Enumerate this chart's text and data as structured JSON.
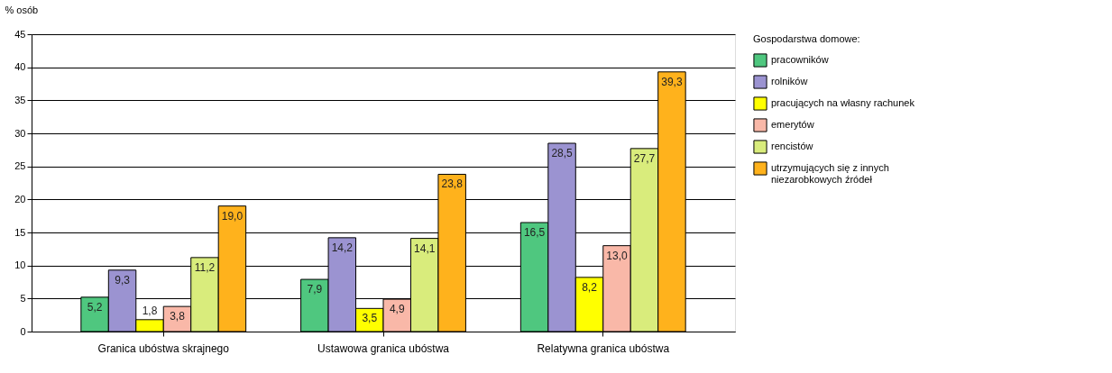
{
  "chart_data": {
    "type": "bar",
    "ylabel": "% osób",
    "legend_title": "Gospodarstwa domowe:",
    "categories": [
      "Granica ubóstwa skrajnego",
      "Ustawowa granica ubóstwa",
      "Relatywna granica ubóstwa"
    ],
    "series": [
      {
        "name": "pracowników",
        "color": "#4fc77f",
        "values": [
          5.2,
          7.9,
          16.5
        ],
        "value_labels": [
          "5,2",
          "7,9",
          "16,5"
        ]
      },
      {
        "name": "rolników",
        "color": "#9b93d1",
        "values": [
          9.3,
          14.2,
          28.5
        ],
        "value_labels": [
          "9,3",
          "14,2",
          "28,5"
        ]
      },
      {
        "name": "pracujących na własny rachunek",
        "color": "#ffff00",
        "values": [
          1.8,
          3.5,
          8.2
        ],
        "value_labels": [
          "1,8",
          "3,5",
          "8,2"
        ]
      },
      {
        "name": "emerytów",
        "color": "#f9b8a8",
        "values": [
          3.8,
          4.9,
          13.0
        ],
        "value_labels": [
          "3,8",
          "4,9",
          "13,0"
        ]
      },
      {
        "name": "rencistów",
        "color": "#d9ec7c",
        "values": [
          11.2,
          14.1,
          27.7
        ],
        "value_labels": [
          "11,2",
          "14,1",
          "27,7"
        ]
      },
      {
        "name": "utrzymujących się z innych niezarobkowych źródeł",
        "color": "#ffb21c",
        "values": [
          19.0,
          23.8,
          39.3
        ],
        "value_labels": [
          "19,0",
          "23,8",
          "39,3"
        ]
      }
    ],
    "ylim": [
      0,
      45
    ],
    "yticks": [
      0,
      5,
      10,
      15,
      20,
      25,
      30,
      35,
      40,
      45
    ],
    "grid": "y",
    "legend": "right"
  }
}
